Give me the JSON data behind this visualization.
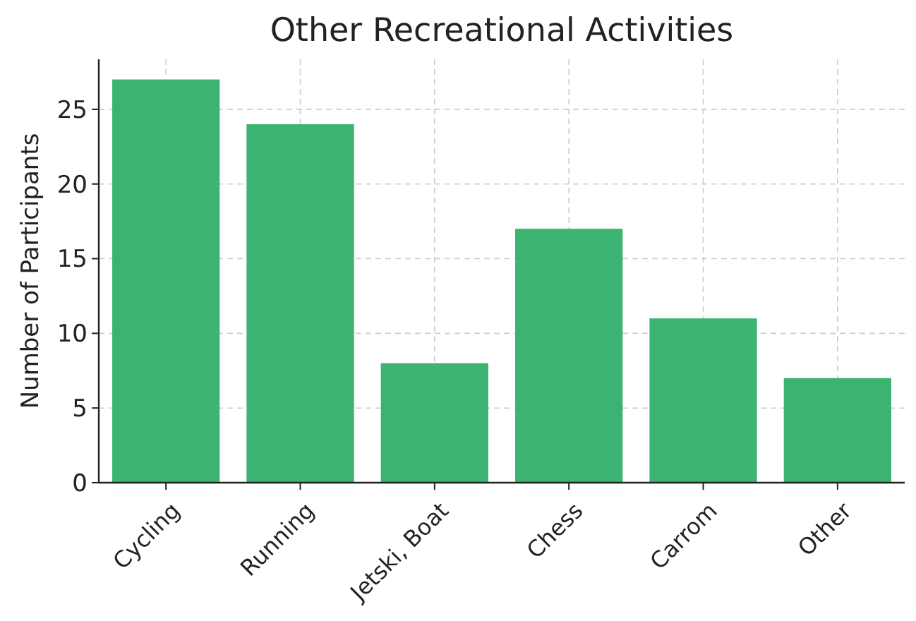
{
  "chart_data": {
    "type": "bar",
    "title": "Other Recreational Activities",
    "ylabel": "Number of Participants",
    "categories": [
      "Cycling",
      "Running",
      "Jetski, Boat",
      "Chess",
      "Carrom",
      "Other"
    ],
    "values": [
      27,
      24,
      8,
      17,
      11,
      7
    ],
    "color": "#3cb371",
    "ylim": [
      0,
      28.35
    ],
    "yticks": [
      0,
      5,
      10,
      15,
      20,
      25
    ],
    "grid": true
  }
}
